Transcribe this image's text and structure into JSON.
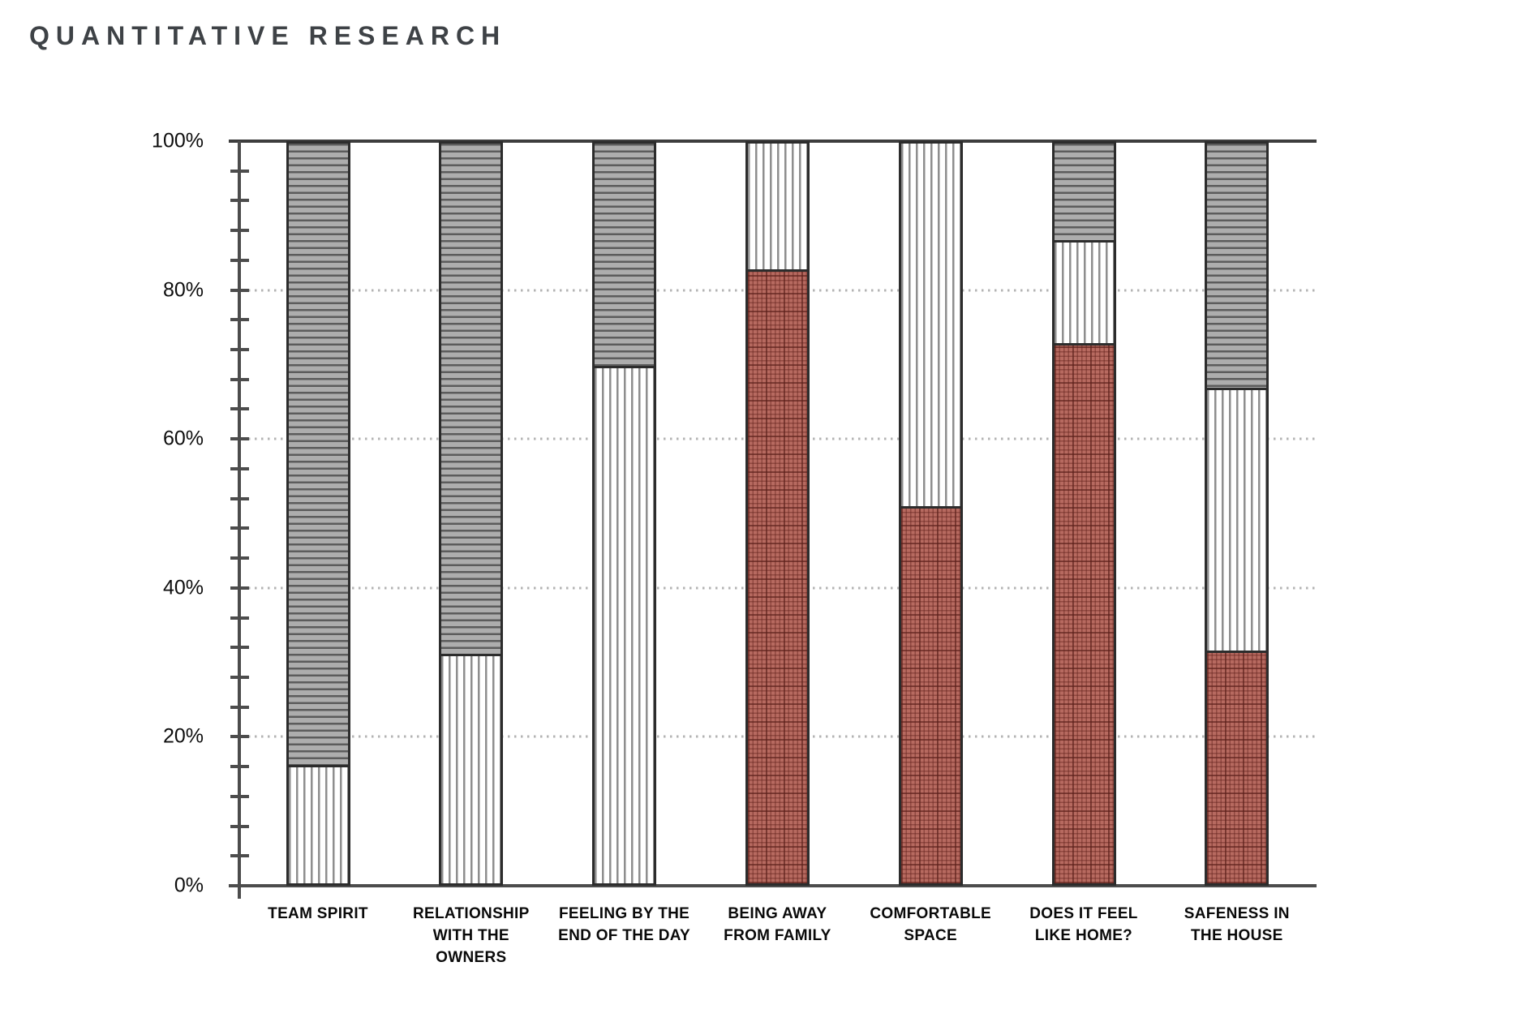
{
  "title": "QUANTITATIVE RESEARCH",
  "colors": {
    "title_text": "#3e4246",
    "axis": "#4c4c4c",
    "top_boundary_line": "#3d3d3d",
    "dotted_gridline": "#b3b3b3",
    "bar_border": "#2c2c2c",
    "red_fill": "#b76a60",
    "red_grid_line": "#8a453e",
    "gray_fill": "#adadad",
    "gray_stripe_line": "#5c5c5c",
    "vertical_stripe_line": "#8e8e8e",
    "category_label_text": "#0a0a0a",
    "background": "#ffffff"
  },
  "y_axis": {
    "minor_tick_step_pct": 4,
    "ticks": [
      {
        "label": "100%",
        "value": 100
      },
      {
        "label": "80%",
        "value": 80
      },
      {
        "label": "60%",
        "value": 60
      },
      {
        "label": "40%",
        "value": 40
      },
      {
        "label": "20%",
        "value": 20
      },
      {
        "label": "0%",
        "value": 0
      }
    ]
  },
  "chart_data": {
    "type": "bar",
    "stacked": true,
    "title": "QUANTITATIVE RESEARCH",
    "xlabel": "",
    "ylabel": "",
    "ylim": [
      0,
      100
    ],
    "legend": "none",
    "gridlines": {
      "dotted_at": [
        20,
        40,
        60,
        80
      ],
      "solid_at": [
        100
      ]
    },
    "categories": [
      "TEAM SPIRIT",
      "RELATIONSHIP\nWITH THE\nOWNERS",
      "FEELING BY THE\nEND OF THE DAY",
      "BEING AWAY\nFROM FAMILY",
      "COMFORTABLE\nSPACE",
      "DOES IT FEEL\nLIKE HOME?",
      "SAFENESS IN\nTHE HOUSE"
    ],
    "series": [
      {
        "name": "red-crosshatch",
        "pattern": "red graph-paper crosshatch (bottom)",
        "values": [
          0,
          0,
          0,
          83,
          51,
          73,
          31.5
        ]
      },
      {
        "name": "white-vertical-stripes",
        "pattern": "vertical stripes on white (middle)",
        "values": [
          16,
          31,
          70,
          17,
          49,
          14,
          35.5
        ]
      },
      {
        "name": "gray-horizontal-stripes",
        "pattern": "horizontal stripes on gray (top)",
        "values": [
          84,
          69,
          30,
          0,
          0,
          13,
          33
        ]
      }
    ]
  }
}
